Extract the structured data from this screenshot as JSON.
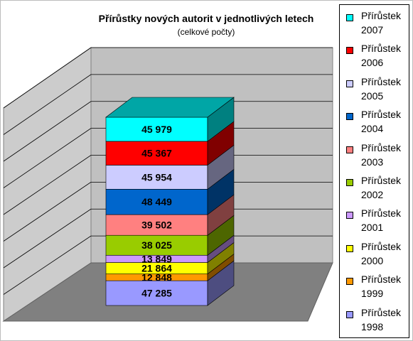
{
  "chart_data": {
    "type": "bar",
    "stacked": true,
    "three_d": true,
    "title": "Přírůstky nových autorit v jednotlivých letech",
    "subtitle": "(celkové počty)",
    "categories": [
      ""
    ],
    "legend_position": "right",
    "grid": true,
    "series": [
      {
        "name": "Přírůstek 2007",
        "legend_line1": "Přírůstek",
        "legend_line2": "2007",
        "value": 45979,
        "label": "45 979",
        "color": "#00FFFF"
      },
      {
        "name": "Přírůstek 2006",
        "legend_line1": "Přírůstek",
        "legend_line2": "2006",
        "value": 45367,
        "label": "45 367",
        "color": "#FF0000"
      },
      {
        "name": "Přírůstek 2005",
        "legend_line1": "Přírůstek",
        "legend_line2": "2005",
        "value": 45954,
        "label": "45 954",
        "color": "#CCCCFF"
      },
      {
        "name": "Přírůstek 2004",
        "legend_line1": "Přírůstek",
        "legend_line2": "2004",
        "value": 48449,
        "label": "48 449",
        "color": "#0066CC"
      },
      {
        "name": "Přírůstek 2003",
        "legend_line1": "Přírůstek",
        "legend_line2": "2003",
        "value": 39502,
        "label": "39 502",
        "color": "#FF8080"
      },
      {
        "name": "Přírůstek 2002",
        "legend_line1": "Přírůstek",
        "legend_line2": "2002",
        "value": 38025,
        "label": "38 025",
        "color": "#99CC00"
      },
      {
        "name": "Přírůstek 2001",
        "legend_line1": "Přírůstek",
        "legend_line2": "2001",
        "value": 13849,
        "label": "13 849",
        "color": "#CC99FF"
      },
      {
        "name": "Přírůstek 2000",
        "legend_line1": "Přírůstek",
        "legend_line2": "2000",
        "value": 21864,
        "label": "21 864",
        "color": "#FFFF00"
      },
      {
        "name": "Přírůstek 1999",
        "legend_line1": "Přírůstek",
        "legend_line2": "1999",
        "value": 12848,
        "label": "12 848",
        "color": "#FF9900"
      },
      {
        "name": "Přírůstek 1998",
        "legend_line1": "Přírůstek",
        "legend_line2": "1998",
        "value": 47285,
        "label": "47 285",
        "color": "#9999FF"
      }
    ]
  }
}
